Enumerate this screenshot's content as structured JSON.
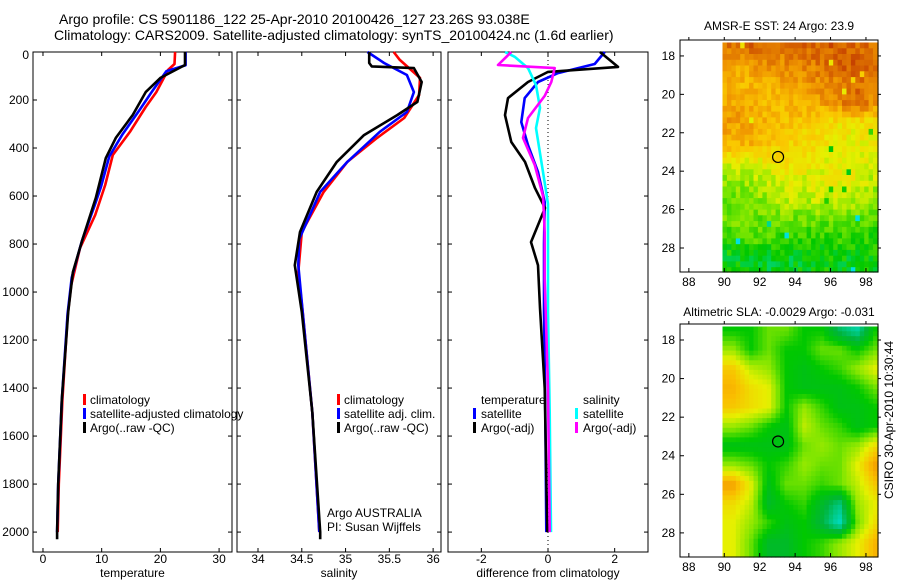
{
  "title": {
    "line1": "Argo profile: CS 5901186_122 25-Apr-2010 20100426_127 23.26S 93.038E",
    "line2": "Climatology: CARS2009. Satellite-adjusted climatology: synTS_20100424.nc (1.6d earlier)"
  },
  "side_label": "CSIRO 30-Apr-2010 10:30:44",
  "credit": {
    "line1": "Argo AUSTRALIA",
    "line2": "PI: Susan Wijffels"
  },
  "chart_data": [
    {
      "type": "line",
      "id": "temperature",
      "xlabel": "temperature",
      "ylabel": "",
      "xlim": [
        -1.7,
        32.2
      ],
      "ylim": [
        0,
        2083
      ],
      "y_reversed": true,
      "xticks": [
        0,
        10,
        20,
        30
      ],
      "yticks": [
        0,
        200,
        400,
        600,
        800,
        1000,
        1200,
        1400,
        1600,
        1800,
        2000
      ],
      "legend_placement": "lower-middle",
      "legend": [
        "climatology",
        "satellite-adjusted climatology",
        "Argo(..raw -QC)"
      ],
      "series": [
        {
          "name": "climatology",
          "color": "#ff0000",
          "points": [
            [
              22.5,
              0
            ],
            [
              22.4,
              50
            ],
            [
              21.3,
              75
            ],
            [
              19.3,
              167
            ],
            [
              17.5,
              229
            ],
            [
              14.8,
              333
            ],
            [
              11.9,
              429
            ],
            [
              10.6,
              554
            ],
            [
              8.9,
              679
            ],
            [
              6.3,
              817
            ],
            [
              4.8,
              971
            ],
            [
              4.2,
              1100
            ],
            [
              3.3,
              1450
            ],
            [
              2.7,
              1800
            ],
            [
              2.5,
              2000
            ]
          ]
        },
        {
          "name": "satellite-adjusted climatology",
          "color": "#0000ff",
          "points": [
            [
              24.3,
              0
            ],
            [
              24.3,
              55
            ],
            [
              21.0,
              80
            ],
            [
              18.5,
              167
            ],
            [
              16.5,
              240
            ],
            [
              13.5,
              345
            ],
            [
              11.3,
              435
            ],
            [
              9.9,
              560
            ],
            [
              8.8,
              640
            ],
            [
              6.6,
              790
            ],
            [
              4.9,
              940
            ],
            [
              4.2,
              1090
            ],
            [
              3.2,
              1450
            ],
            [
              2.6,
              1800
            ],
            [
              2.4,
              2000
            ]
          ]
        },
        {
          "name": "Argo(..raw -QC)",
          "color": "#000000",
          "points": [
            [
              24.2,
              0
            ],
            [
              24.2,
              54
            ],
            [
              20.0,
              108
            ],
            [
              17.5,
              167
            ],
            [
              15.3,
              262
            ],
            [
              12.4,
              358
            ],
            [
              10.7,
              442
            ],
            [
              9.0,
              608
            ],
            [
              6.8,
              775
            ],
            [
              5.1,
              917
            ],
            [
              4.3,
              1083
            ],
            [
              3.2,
              1450
            ],
            [
              2.6,
              1800
            ],
            [
              2.4,
              2000
            ],
            [
              2.4,
              2030
            ]
          ]
        }
      ]
    },
    {
      "type": "line",
      "id": "salinity",
      "xlabel": "salinity",
      "xlim": [
        33.76,
        36.09
      ],
      "ylim": [
        0,
        2083
      ],
      "y_reversed": true,
      "xticks": [
        34,
        34.5,
        35,
        35.5,
        36
      ],
      "yticks": [
        0,
        200,
        400,
        600,
        800,
        1000,
        1200,
        1400,
        1600,
        1800,
        2000
      ],
      "legend_placement": "lower-right",
      "legend": [
        "climatology",
        "satellite adj. clim.",
        "Argo(..raw -QC)"
      ],
      "series": [
        {
          "name": "climatology",
          "color": "#ff0000",
          "points": [
            [
              35.55,
              0
            ],
            [
              35.62,
              33
            ],
            [
              35.85,
              108
            ],
            [
              35.84,
              179
            ],
            [
              35.67,
              275
            ],
            [
              35.36,
              358
            ],
            [
              35.02,
              458
            ],
            [
              34.75,
              583
            ],
            [
              34.5,
              750
            ],
            [
              34.46,
              917
            ],
            [
              34.51,
              1083
            ],
            [
              34.62,
              1500
            ],
            [
              34.7,
              2000
            ]
          ]
        },
        {
          "name": "satellite adj. clim.",
          "color": "#0000ff",
          "points": [
            [
              35.25,
              0
            ],
            [
              35.44,
              46
            ],
            [
              35.7,
              96
            ],
            [
              35.78,
              167
            ],
            [
              35.7,
              250
            ],
            [
              35.39,
              333
            ],
            [
              35.02,
              458
            ],
            [
              34.71,
              583
            ],
            [
              34.47,
              780
            ],
            [
              34.46,
              888
            ],
            [
              34.51,
              1083
            ],
            [
              34.62,
              1500
            ],
            [
              34.7,
              2000
            ]
          ]
        },
        {
          "name": "Argo(..raw -QC)",
          "color": "#000000",
          "points": [
            [
              35.27,
              0
            ],
            [
              35.27,
              46
            ],
            [
              35.3,
              60
            ],
            [
              35.78,
              67
            ],
            [
              35.87,
              125
            ],
            [
              35.82,
              208
            ],
            [
              35.59,
              263
            ],
            [
              35.21,
              346
            ],
            [
              34.9,
              458
            ],
            [
              34.67,
              583
            ],
            [
              34.48,
              750
            ],
            [
              34.42,
              888
            ],
            [
              34.5,
              1083
            ],
            [
              34.62,
              1500
            ],
            [
              34.71,
              2000
            ],
            [
              34.71,
              2030
            ]
          ]
        }
      ]
    },
    {
      "type": "line",
      "id": "difference",
      "xlabel": "difference from climatology",
      "xlim": [
        -3,
        3
      ],
      "ylim": [
        0,
        2083
      ],
      "y_reversed": true,
      "xticks": [
        -2,
        0,
        2
      ],
      "yticks": [
        0,
        200,
        400,
        600,
        800,
        1000,
        1200,
        1400,
        1600,
        1800,
        2000
      ],
      "zero_line": "dotted",
      "legend_placement": "lower-middle",
      "legend_headers": [
        "temperature",
        "salinity"
      ],
      "legend": [
        "satellite",
        "Argo(-adj)",
        "satellite",
        "Argo(-adj)"
      ],
      "series": [
        {
          "name": "temperature satellite",
          "color": "#0000ff",
          "points": [
            [
              1.7,
              0
            ],
            [
              1.4,
              50
            ],
            [
              0.3,
              88
            ],
            [
              -0.3,
              125
            ],
            [
              -0.7,
              192
            ],
            [
              -0.8,
              292
            ],
            [
              -0.6,
              388
            ],
            [
              -0.3,
              500
            ],
            [
              -0.1,
              625
            ],
            [
              -0.12,
              800
            ],
            [
              -0.12,
              1083
            ],
            [
              -0.08,
              1500
            ],
            [
              -0.05,
              2000
            ]
          ]
        },
        {
          "name": "temperature Argo(-adj)",
          "color": "#000000",
          "points": [
            [
              1.56,
              0
            ],
            [
              2.1,
              62
            ],
            [
              0.0,
              83
            ],
            [
              -0.6,
              125
            ],
            [
              -1.2,
              192
            ],
            [
              -1.29,
              263
            ],
            [
              -1.1,
              375
            ],
            [
              -0.69,
              458
            ],
            [
              -0.39,
              567
            ],
            [
              -0.09,
              650
            ],
            [
              -0.51,
              792
            ],
            [
              -0.3,
              888
            ],
            [
              -0.24,
              1067
            ],
            [
              -0.1,
              1400
            ],
            [
              -0.02,
              2000
            ]
          ]
        },
        {
          "name": "salinity satellite",
          "color": "#00ffff",
          "points": [
            [
              -1.29,
              0
            ],
            [
              -1.0,
              20
            ],
            [
              -0.6,
              67
            ],
            [
              -0.36,
              138
            ],
            [
              -0.24,
              233
            ],
            [
              -0.36,
              317
            ],
            [
              -0.15,
              500
            ],
            [
              0.0,
              633
            ],
            [
              0.0,
              1083
            ],
            [
              0.05,
              1500
            ],
            [
              0.09,
              2000
            ]
          ]
        },
        {
          "name": "salinity Argo(-adj)",
          "color": "#ff00ff",
          "points": [
            [
              -1.1,
              0
            ],
            [
              -1.5,
              54
            ],
            [
              0.2,
              67
            ],
            [
              0.1,
              125
            ],
            [
              -0.1,
              183
            ],
            [
              -0.6,
              275
            ],
            [
              -0.75,
              358
            ],
            [
              -0.4,
              470
            ],
            [
              -0.15,
              600
            ],
            [
              -0.1,
              750
            ],
            [
              -0.1,
              945
            ],
            [
              0.0,
              1400
            ],
            [
              0.05,
              2000
            ]
          ]
        }
      ]
    },
    {
      "type": "heatmap",
      "id": "sst-map",
      "title": "AMSR-E SST: 24 Argo: 23.9",
      "xlim": [
        87.5,
        98.68
      ],
      "ylim": [
        17.17,
        29.25
      ],
      "y_reversed": true,
      "xticks": [
        88,
        90,
        92,
        94,
        96,
        98
      ],
      "yticks": [
        18,
        20,
        22,
        24,
        26,
        28
      ],
      "data_extent": {
        "lon": [
          89.9,
          98.68
        ],
        "lat": [
          17.3,
          29.25
        ]
      },
      "grid_lon": [
        90.5,
        91.5,
        92.5,
        93.5,
        94.5,
        95.5,
        96.5,
        97.5,
        98.5
      ],
      "grid_lat": [
        17.5,
        18.5,
        19.5,
        20.5,
        21.5,
        22.5,
        23.5,
        24.5,
        25.5,
        26.5,
        27.5,
        28.5
      ],
      "values": [
        [
          25.2,
          25.3,
          25.3,
          25.2,
          25.3,
          25.3,
          25.4,
          25.3,
          25.2
        ],
        [
          24.6,
          24.7,
          24.8,
          24.9,
          25.0,
          25.1,
          25.3,
          25.4,
          25.3
        ],
        [
          24.4,
          24.4,
          24.5,
          24.6,
          24.7,
          24.9,
          25.0,
          25.2,
          25.1
        ],
        [
          24.6,
          24.5,
          24.4,
          24.4,
          24.5,
          24.6,
          24.9,
          25.3,
          24.8
        ],
        [
          24.7,
          24.6,
          24.4,
          24.3,
          24.2,
          24.0,
          23.8,
          23.8,
          23.9
        ],
        [
          24.5,
          24.5,
          24.2,
          24.1,
          24.0,
          23.9,
          23.8,
          23.7,
          23.7
        ],
        [
          23.6,
          23.6,
          23.8,
          23.9,
          23.8,
          23.6,
          23.7,
          23.7,
          23.6
        ],
        [
          23.1,
          23.2,
          23.4,
          23.6,
          23.5,
          23.6,
          23.7,
          23.6,
          23.3
        ],
        [
          22.9,
          23.0,
          23.2,
          23.4,
          23.3,
          23.5,
          23.5,
          23.3,
          23.0
        ],
        [
          23.0,
          23.0,
          22.8,
          22.9,
          23.0,
          22.9,
          22.8,
          22.8,
          22.8
        ],
        [
          22.6,
          22.8,
          22.7,
          22.6,
          22.5,
          22.5,
          22.6,
          22.6,
          22.5
        ],
        [
          22.3,
          22.3,
          22.2,
          22.2,
          22.3,
          22.4,
          22.3,
          22.3,
          22.3
        ]
      ],
      "colormap": {
        "domain": [
          21.5,
          22.3,
          23.0,
          23.6,
          24.2,
          24.8,
          25.4,
          26.0
        ],
        "colors": [
          "#00e0e0",
          "#00c800",
          "#78e600",
          "#e6f000",
          "#fac800",
          "#f09600",
          "#d25a00",
          "#aa0a00"
        ]
      },
      "marker": {
        "lon": 93.038,
        "lat": 23.26,
        "shape": "circle"
      }
    },
    {
      "type": "heatmap",
      "id": "sla-map",
      "title": "Altimetric SLA: -0.0029 Argo: -0.031",
      "xlim": [
        87.5,
        98.68
      ],
      "ylim": [
        17.17,
        29.25
      ],
      "y_reversed": true,
      "xticks": [
        88,
        90,
        92,
        94,
        96,
        98
      ],
      "yticks": [
        18,
        20,
        22,
        24,
        26,
        28
      ],
      "data_extent": {
        "lon": [
          89.9,
          98.68
        ],
        "lat": [
          17.3,
          29.25
        ]
      },
      "grid_lon": [
        90.5,
        91.5,
        92.5,
        93.5,
        94.5,
        95.5,
        96.5,
        97.5,
        98.5
      ],
      "grid_lat": [
        17.5,
        18.5,
        19.5,
        20.5,
        21.5,
        22.5,
        23.5,
        24.5,
        25.5,
        26.5,
        27.5,
        28.5
      ],
      "values": [
        [
          0,
          0,
          0.02,
          0.02,
          0,
          0,
          -0.04,
          -0.06,
          0
        ],
        [
          0.03,
          0,
          0.02,
          0,
          0,
          0.02,
          0.02,
          0,
          0.02
        ],
        [
          0.07,
          0.04,
          0.03,
          0,
          -0.01,
          0,
          0.01,
          0.03,
          0.05
        ],
        [
          0.08,
          0.06,
          0.05,
          0,
          -0.01,
          -0.01,
          -0.01,
          0,
          0.02
        ],
        [
          0.07,
          0.06,
          0.05,
          0,
          0.03,
          0.01,
          -0.01,
          -0.01,
          0
        ],
        [
          0.03,
          0.02,
          0,
          -0.01,
          0.04,
          0.02,
          0.01,
          -0.01,
          0
        ],
        [
          -0.01,
          -0.01,
          -0.01,
          -0.01,
          0.02,
          0.03,
          0.02,
          0.03,
          0.06
        ],
        [
          0.03,
          0.02,
          0,
          0.01,
          0.03,
          0.02,
          0.02,
          0.05,
          0.09
        ],
        [
          0.09,
          0.05,
          -0.01,
          0.02,
          0.02,
          0.01,
          0.02,
          0.04,
          0.07
        ],
        [
          0.06,
          0.04,
          -0.02,
          0,
          0.01,
          -0.02,
          -0.05,
          0.03,
          0.05
        ],
        [
          0.05,
          0.03,
          0.01,
          -0.01,
          0,
          -0.03,
          -0.07,
          0.02,
          0.06
        ],
        [
          0.05,
          0.02,
          -0.02,
          -0.02,
          0,
          0.01,
          0.03,
          0.05,
          0.08
        ]
      ],
      "colormap": {
        "domain": [
          -0.08,
          -0.03,
          0,
          0.025,
          0.05,
          0.075,
          0.1
        ],
        "colors": [
          "#00e6e6",
          "#00b43c",
          "#00c800",
          "#82e600",
          "#e6f000",
          "#fabe00",
          "#f08c00"
        ]
      },
      "marker": {
        "lon": 93.038,
        "lat": 23.26,
        "shape": "circle"
      }
    }
  ]
}
